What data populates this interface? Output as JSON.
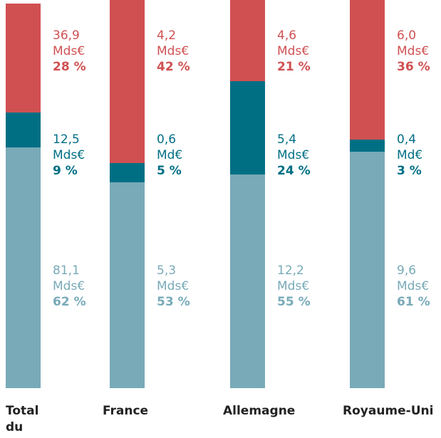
{
  "chart_data": {
    "type": "stacked_bar",
    "categories": [
      "Total du CAD",
      "France",
      "Allemagne",
      "Royaume-Uni"
    ],
    "ylim": [
      0,
      100
    ],
    "series": [
      {
        "color": "#78aab8",
        "values": [
          62,
          53,
          55,
          61
        ],
        "value_labels": [
          "62 %",
          "53 %",
          "55 %",
          "61 %"
        ],
        "amount_labels": [
          "81,1 Mds€",
          "5,3 Mds€",
          "12,2 Mds€",
          "9,6 Mds€"
        ]
      },
      {
        "color": "#006f84",
        "values": [
          9,
          5,
          24,
          3
        ],
        "value_labels": [
          "9 %",
          "5 %",
          "24 %",
          "3 %"
        ],
        "amount_labels": [
          "12,5 Mds€",
          "0,6 Md€",
          "5,4 Mds€",
          "0,4 Md€"
        ]
      },
      {
        "color": "#d05052",
        "values": [
          28,
          42,
          21,
          36
        ],
        "value_labels": [
          "28 %",
          "42 %",
          "21 %",
          "36 %"
        ],
        "amount_labels": [
          "36,9 Mds€",
          "4,2 Mds€",
          "4,6 Mds€",
          "6,0 Mds€"
        ]
      }
    ]
  }
}
